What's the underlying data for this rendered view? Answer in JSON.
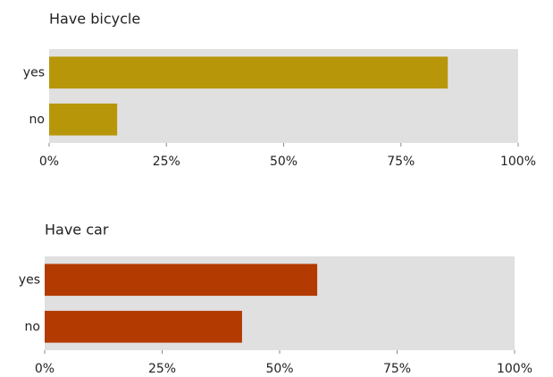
{
  "chart_data": [
    {
      "type": "bar",
      "orientation": "horizontal",
      "title": "Have bicycle",
      "categories": [
        "yes",
        "no"
      ],
      "values": [
        85,
        14.5
      ],
      "color": "#b8960a",
      "xlim": [
        0,
        100
      ],
      "xticks": [
        {
          "value": 0,
          "label": "0%"
        },
        {
          "value": 25,
          "label": "25%"
        },
        {
          "value": 50,
          "label": "50%"
        },
        {
          "value": 75,
          "label": "75%"
        },
        {
          "value": 100,
          "label": "100%"
        }
      ]
    },
    {
      "type": "bar",
      "orientation": "horizontal",
      "title": "Have car",
      "categories": [
        "yes",
        "no"
      ],
      "values": [
        58,
        42
      ],
      "color": "#b33a00",
      "xlim": [
        0,
        100
      ],
      "xticks": [
        {
          "value": 0,
          "label": "0%"
        },
        {
          "value": 25,
          "label": "25%"
        },
        {
          "value": 50,
          "label": "50%"
        },
        {
          "value": 75,
          "label": "75%"
        },
        {
          "value": 100,
          "label": "100%"
        }
      ]
    }
  ]
}
